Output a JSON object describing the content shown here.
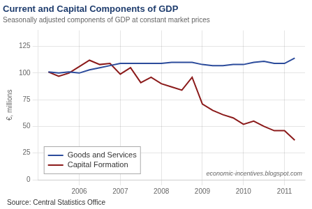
{
  "chart_data": {
    "type": "line",
    "title": "Current and Capital Components of GDP",
    "subtitle": "Seasonally adjusted components of GDP at constant market prices",
    "ylabel": "€, millions",
    "source": "Source: Central Statistics Office",
    "watermark": "economic-incentives.blogspot.com",
    "x": [
      2005.25,
      2005.5,
      2005.75,
      2006.0,
      2006.25,
      2006.5,
      2006.75,
      2007.0,
      2007.25,
      2007.5,
      2007.75,
      2008.0,
      2008.25,
      2008.5,
      2008.75,
      2009.0,
      2009.25,
      2009.5,
      2009.75,
      2010.0,
      2010.25,
      2010.5,
      2010.75,
      2011.0,
      2011.25
    ],
    "series": [
      {
        "name": "Goods and Services",
        "color": "#2b4b9b",
        "values": [
          101,
          100,
          101,
          100,
          103,
          105,
          107,
          109,
          109,
          109,
          109,
          109,
          110,
          110,
          110,
          108,
          107,
          107,
          108,
          108,
          110,
          111,
          109,
          109,
          114
        ]
      },
      {
        "name": "Capital Formation",
        "color": "#8b1a1a",
        "values": [
          101,
          97,
          100,
          106,
          112,
          108,
          109,
          99,
          105,
          91,
          96,
          90,
          87,
          84,
          96,
          71,
          65,
          61,
          58,
          52,
          55,
          50,
          46,
          46,
          37
        ]
      }
    ],
    "xlim": [
      2005.0,
      2011.5
    ],
    "xticks": [
      2006,
      2007,
      2008,
      2009,
      2010,
      2011
    ],
    "ylim": [
      0,
      140
    ],
    "yticks": [
      0,
      25,
      50,
      75,
      100,
      125
    ],
    "grid": true,
    "legend": "lower left"
  }
}
